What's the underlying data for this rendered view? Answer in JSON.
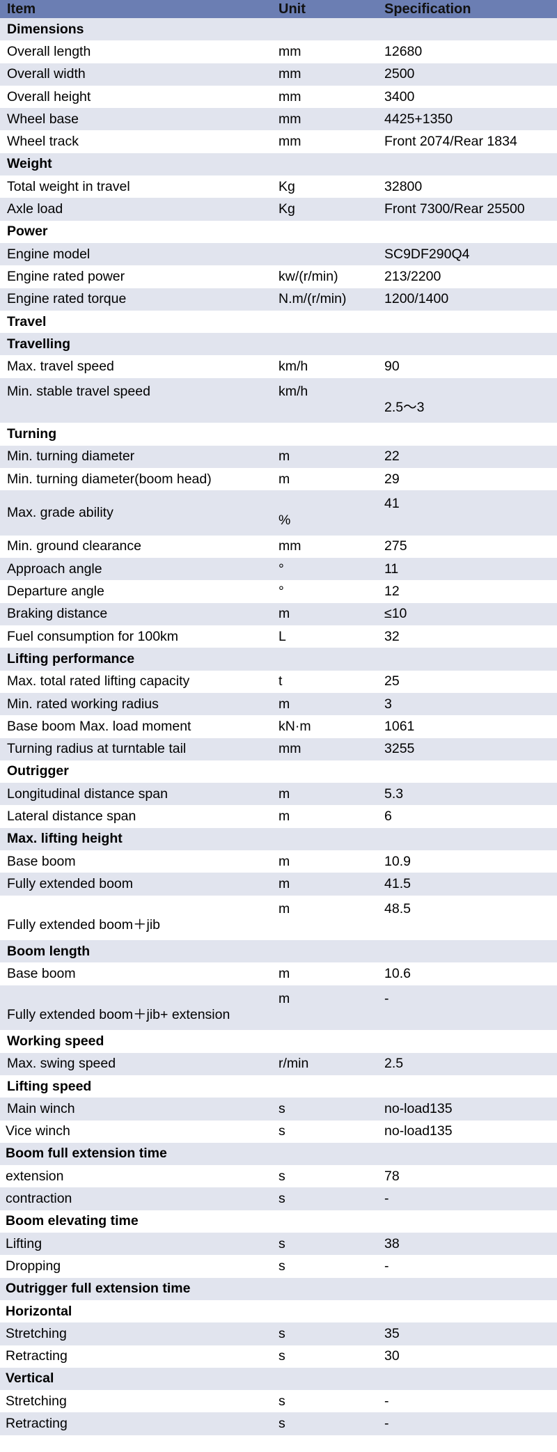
{
  "header": {
    "item": "Item",
    "unit": "Unit",
    "spec": "Specification"
  },
  "rows": [
    {
      "item": "Dimensions",
      "unit": "",
      "spec": "",
      "section": true
    },
    {
      "item": "Overall length",
      "unit": "mm",
      "spec": "12680"
    },
    {
      "item": "Overall width",
      "unit": "mm",
      "spec": "2500"
    },
    {
      "item": "Overall height",
      "unit": "mm",
      "spec": "3400"
    },
    {
      "item": "Wheel base",
      "unit": "mm",
      "spec": "4425+1350"
    },
    {
      "item": "Wheel track",
      "unit": "mm",
      "spec": "Front 2074/Rear 1834"
    },
    {
      "item": "Weight",
      "unit": "",
      "spec": "",
      "section": true
    },
    {
      "item": "Total weight in travel",
      "unit": "Kg",
      "spec": "32800"
    },
    {
      "item": "Axle load",
      "unit": "Kg",
      "spec": "Front 7300/Rear 25500"
    },
    {
      "item": "Power",
      "unit": "",
      "spec": "",
      "section": true
    },
    {
      "item": "Engine model",
      "unit": "",
      "spec": "SC9DF290Q4"
    },
    {
      "item": "Engine rated power",
      "unit": "kw/(r/min)",
      "spec": "213/2200"
    },
    {
      "item": "Engine rated torque",
      "unit": "N.m/(r/min)",
      "spec": "1200/1400"
    },
    {
      "item": "Travel",
      "unit": "",
      "spec": "",
      "section": true
    },
    {
      "item": "Travelling",
      "unit": "",
      "spec": "",
      "section": true
    },
    {
      "item": "Max. travel speed",
      "unit": "km/h",
      "spec": "90"
    },
    {
      "item": "Min. stable travel speed",
      "unit": "km/h",
      "spec": "2.5～3"
    },
    {
      "item": "Turning",
      "unit": "",
      "spec": "",
      "section": true
    },
    {
      "item": "Min. turning diameter",
      "unit": "m",
      "spec": "22"
    },
    {
      "item": "Min. turning diameter(boom head)",
      "unit": "m",
      "spec": "29"
    },
    {
      "item": "Max. grade ability",
      "unit": "%",
      "spec": "41"
    },
    {
      "item": "Min. ground clearance",
      "unit": "mm",
      "spec": "275"
    },
    {
      "item": "Approach angle",
      "unit": "°",
      "spec": "11"
    },
    {
      "item": "Departure angle",
      "unit": "°",
      "spec": "12"
    },
    {
      "item": "Braking distance",
      "unit": "m",
      "spec": "≤10"
    },
    {
      "item": "Fuel consumption for 100km",
      "unit": "L",
      "spec": "32"
    },
    {
      "item": "Lifting performance",
      "unit": "",
      "spec": "",
      "section": true
    },
    {
      "item": "Max. total rated lifting capacity",
      "unit": "t",
      "spec": "25"
    },
    {
      "item": "Min. rated working radius",
      "unit": "m",
      "spec": "3"
    },
    {
      "item": "Base boom Max. load moment",
      "unit": "kN·m",
      "spec": "1061"
    },
    {
      "item": "Turning radius at turntable tail",
      "unit": "mm",
      "spec": "3255"
    },
    {
      "item": "Outrigger",
      "unit": "",
      "spec": "",
      "section": true
    },
    {
      "item": "Longitudinal distance span",
      "unit": "m",
      "spec": "5.3"
    },
    {
      "item": "Lateral distance span",
      "unit": "m",
      "spec": "6"
    },
    {
      "item": "Max. lifting height",
      "unit": "",
      "spec": "",
      "section": true
    },
    {
      "item": "Base boom",
      "unit": "m",
      "spec": "10.9"
    },
    {
      "item": "Fully extended boom",
      "unit": "m",
      "spec": "41.5"
    },
    {
      "item": "Fully extended boom＋jib",
      "unit": "m",
      "spec": "48.5"
    },
    {
      "item": "Boom length",
      "unit": "",
      "spec": "",
      "section": true
    },
    {
      "item": "Base boom",
      "unit": "m",
      "spec": "10.6"
    },
    {
      "item": "Fully extended boom＋jib+ extension",
      "unit": "m",
      "spec": "-"
    },
    {
      "item": "Working speed",
      "unit": "",
      "spec": "",
      "section": true
    },
    {
      "item": "Max. swing speed",
      "unit": "r/min",
      "spec": "2.5"
    },
    {
      "item": "Lifting speed",
      "unit": "",
      "spec": "",
      "section": true
    },
    {
      "item": "Main winch",
      "unit": "s",
      "spec": "no-load135"
    },
    {
      "item": "Vice winch",
      "unit": "s",
      "spec": "no-load135"
    },
    {
      "item": "Boom full extension time",
      "unit": "",
      "spec": "",
      "section": true
    },
    {
      "item": "extension",
      "unit": "s",
      "spec": "78"
    },
    {
      "item": "contraction",
      "unit": "s",
      "spec": "-"
    },
    {
      "item": "Boom elevating time",
      "unit": "",
      "spec": "",
      "section": true
    },
    {
      "item": "Lifting",
      "unit": "s",
      "spec": "38"
    },
    {
      "item": "Dropping",
      "unit": "s",
      "spec": "-"
    },
    {
      "item": "Outrigger full extension time",
      "unit": "",
      "spec": "",
      "section": true
    },
    {
      "item": "Horizontal",
      "unit": "",
      "spec": "",
      "section": true
    },
    {
      "item": "Stretching",
      "unit": "s",
      "spec": "35"
    },
    {
      "item": "Retracting",
      "unit": "s",
      "spec": "30"
    },
    {
      "item": "Vertical",
      "unit": "",
      "spec": "",
      "section": true
    },
    {
      "item": "Stretching",
      "unit": "s",
      "spec": "-"
    },
    {
      "item": "Retracting",
      "unit": "s",
      "spec": "-"
    }
  ]
}
